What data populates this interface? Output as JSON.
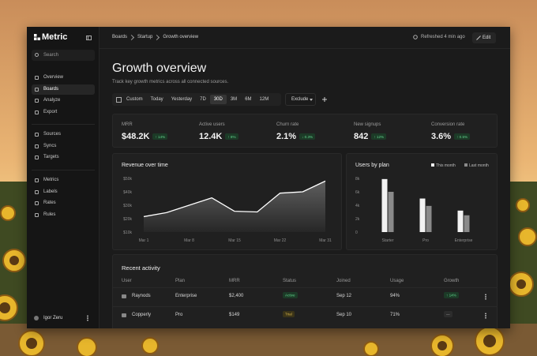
{
  "sidebar": {
    "brand": "Metric",
    "search": "Search",
    "nav": [
      [
        "Overview",
        "Boards",
        "Analyze",
        "Export"
      ],
      [
        "Sources",
        "Syncs",
        "Targets"
      ],
      [
        "Metrics",
        "Labels",
        "Rates",
        "Rules"
      ]
    ],
    "user": "Igor Zeru"
  },
  "topbar": {
    "breadcrumb": [
      "Boards",
      "Startup",
      "Growth overview"
    ],
    "refreshed": "Refreshed 4 min ago",
    "edit": "Edit"
  },
  "header": {
    "title": "Growth overview",
    "subtitle": "Track key growth metrics across all connected sources."
  },
  "filters": {
    "ranges": [
      "Custom",
      "Today",
      "Yesterday",
      "7D",
      "30D",
      "3M",
      "6M",
      "12M"
    ],
    "exclude": "Exclude"
  },
  "kpis": [
    {
      "label": "MRR",
      "value": "$48.2K",
      "delta": "↑ 14%"
    },
    {
      "label": "Active users",
      "value": "12.4K",
      "delta": "↑ 8%"
    },
    {
      "label": "Churn rate",
      "value": "2.1%",
      "delta": "↓ 0.3%"
    },
    {
      "label": "New signups",
      "value": "842",
      "delta": "↑ 12%"
    },
    {
      "label": "Conversion rate",
      "value": "3.6%",
      "delta": "↑ 0.5%"
    }
  ],
  "chart_data": [
    {
      "type": "line",
      "title": "Revenue over time",
      "categories": [
        "Mar 1",
        null,
        "Mar 8",
        null,
        "Mar 15",
        null,
        "Mar 22",
        null,
        "Mar 31"
      ],
      "values": [
        21.5,
        24.5,
        30,
        35.5,
        25.5,
        25,
        39,
        40,
        48
      ],
      "color": "#ffffff",
      "ylim": [
        10,
        50
      ],
      "yticks": [
        {
          "value": 10,
          "label": "$10k"
        },
        {
          "value": 20,
          "label": "$20k"
        },
        {
          "value": 30,
          "label": "$30k"
        },
        {
          "value": 40,
          "label": "$40k"
        },
        {
          "value": 50,
          "label": "$50k"
        }
      ],
      "grid": false
    },
    {
      "type": "bar",
      "title": "Users by plan",
      "categories": [
        "Starter",
        "Pro",
        "Enterprise"
      ],
      "series": [
        {
          "name": "This month",
          "color": "#f2f2f2",
          "values": [
            7.9,
            5.0,
            3.2
          ]
        },
        {
          "name": "Last month",
          "color": "#8a8a8a",
          "values": [
            6.0,
            3.9,
            2.5
          ]
        }
      ],
      "ylim": [
        0,
        8
      ],
      "yticks": [
        0,
        {
          "value": 2,
          "label": "2k"
        },
        {
          "value": 4,
          "label": "4k"
        },
        {
          "value": 6,
          "label": "6k"
        },
        {
          "value": 8,
          "label": "8k"
        }
      ],
      "legend": "top-right",
      "grid": false
    }
  ],
  "table": {
    "title": "Recent activity",
    "columns": [
      "User",
      "Plan",
      "MRR",
      "Status",
      "Joined",
      "Usage",
      "Growth"
    ],
    "rows": [
      [
        "Raynods",
        "Enterprise",
        "$2,400",
        "Active",
        "Sep 12",
        "94%",
        "↑ 14%"
      ],
      [
        "Copperly",
        "Pro",
        "$149",
        "Trial",
        "Sep 10",
        "71%",
        "—"
      ]
    ]
  }
}
